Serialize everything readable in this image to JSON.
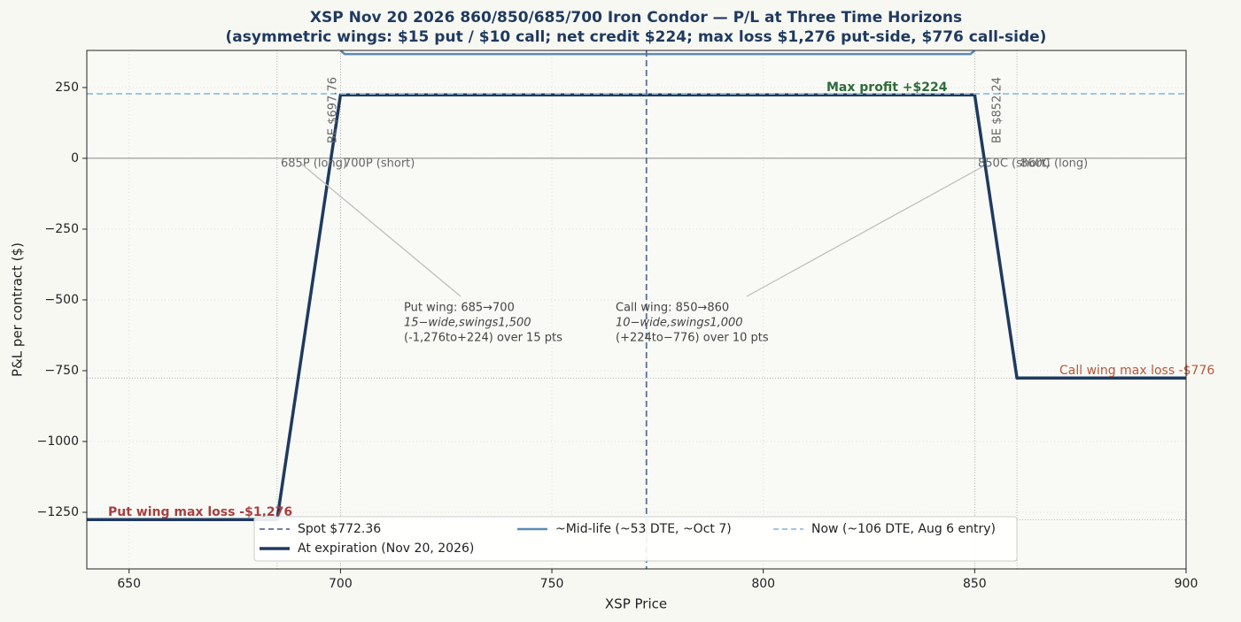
{
  "chart_data": {
    "type": "line",
    "title": "XSP Nov 20 2026 860/850/685/700 Iron Condor — P/L at Three Time Horizons",
    "subtitle": "(asymmetric wings: $15 put / $10 call; net credit $224; max loss $1,276 put-side, $776 call-side)",
    "xlabel": "XSP Price",
    "ylabel": "P&L per contract ($)",
    "xlim": [
      640,
      900
    ],
    "ylim": [
      -1450,
      381
    ],
    "xticks": [
      650,
      700,
      750,
      800,
      850,
      900
    ],
    "yticks": [
      250,
      0,
      {
        "value": -250,
        "label": "−250"
      },
      {
        "value": -500,
        "label": "−500"
      },
      {
        "value": -750,
        "label": "−750"
      },
      {
        "value": -1000,
        "label": "−1000"
      },
      {
        "value": -1250,
        "label": "−1250"
      }
    ],
    "grid": true,
    "zero_line": true,
    "reference_x": [
      685,
      700,
      850,
      860
    ],
    "reference_y": [
      -1276,
      -776
    ],
    "spot": {
      "name": "Spot $772.36",
      "x": 772.36,
      "color": "#5a6f9a"
    },
    "series": [
      {
        "name": "At expiration (Nov 20, 2026)",
        "color": "#1f3a5f",
        "style": "solid",
        "width": 3.5,
        "x": [
          640,
          685,
          700,
          850,
          860,
          900
        ],
        "values": [
          -1276,
          -1276,
          224,
          224,
          -776,
          -776
        ]
      },
      {
        "name": "~Mid-life (~53 DTE, ~Oct 7)",
        "color": "#5b8ab5",
        "style": "solid",
        "width": 2.5,
        "x": [
          700,
          701,
          849,
          850
        ],
        "values": [
          381,
          368,
          368,
          381
        ]
      },
      {
        "name": "Now (~106 DTE, Aug 6 entry)",
        "color": "#94bedd",
        "style": "dashed",
        "width": 1.8,
        "x": [
          640,
          900
        ],
        "values": [
          228,
          228
        ]
      }
    ],
    "legend_order": [
      "spot",
      0,
      1,
      2
    ],
    "annotations": [
      {
        "text": "BE $697.76"
      },
      {
        "text": "BE $852.24"
      },
      {
        "text": "Max profit +$224"
      },
      {
        "text": "685P (long)"
      },
      {
        "text": "700P (short)"
      },
      {
        "text": "850C (short)"
      },
      {
        "text": "860C (long)"
      },
      {
        "lines": [
          "Put wing: 685→700",
          "15−wide,swings1,500",
          "(-1,276to+224) over 15 pts"
        ]
      },
      {
        "lines": [
          "Call wing: 850→860",
          "10−wide,swings1,000",
          "(+224to−776) over 10 pts"
        ]
      },
      {
        "text": "Put wing max loss  -$1,276"
      },
      {
        "text": "Call wing max loss  -$776"
      }
    ]
  }
}
